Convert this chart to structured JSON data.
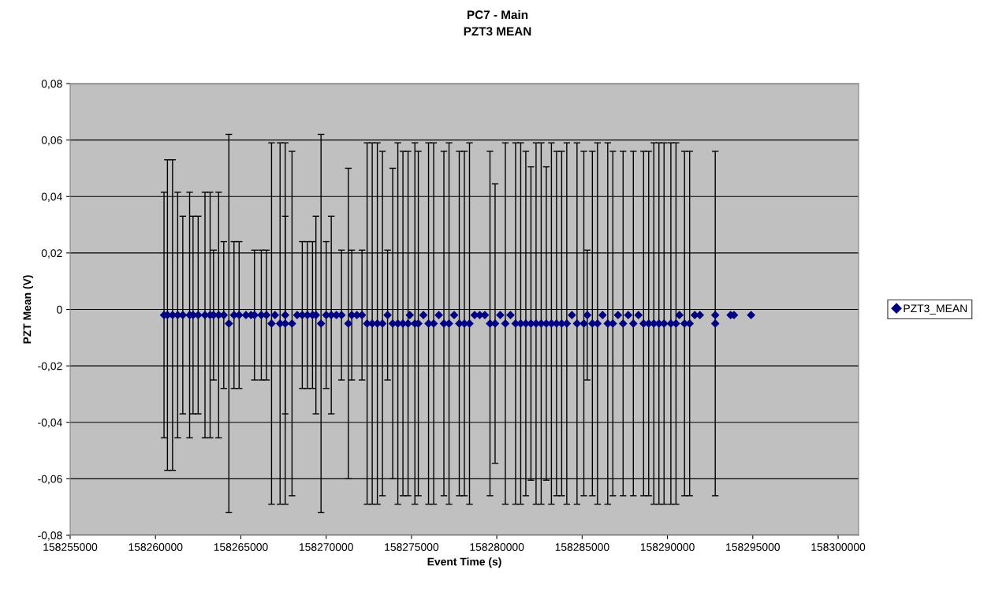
{
  "chart_data": {
    "type": "scatter",
    "title": "PC7 - Main",
    "subtitle": "PZT3 MEAN",
    "xlabel": "Event Time (s)",
    "ylabel": "PZT Mean (V)",
    "xlim": [
      158255000,
      158301200
    ],
    "xticks": [
      158255000,
      158260000,
      158265000,
      158270000,
      158275000,
      158280000,
      158285000,
      158290000,
      158295000,
      158300000
    ],
    "ylim": [
      -0.08,
      0.08
    ],
    "yticks": [
      {
        "value": -0.08,
        "label": "-0,08"
      },
      {
        "value": -0.06,
        "label": "-0,06"
      },
      {
        "value": -0.04,
        "label": "-0,04"
      },
      {
        "value": -0.02,
        "label": "-0,02"
      },
      {
        "value": 0,
        "label": "0"
      },
      {
        "value": 0.02,
        "label": "0,02"
      },
      {
        "value": 0.04,
        "label": "0,04"
      },
      {
        "value": 0.06,
        "label": "0,06"
      },
      {
        "value": 0.08,
        "label": "0,08"
      }
    ],
    "grid": "y",
    "legend": "right",
    "marker": "diamond",
    "series": [
      {
        "name": "PZT3_MEAN",
        "color": "#000080",
        "x": [
          158260500,
          158260700,
          158261000,
          158261300,
          158261600,
          158262000,
          158262200,
          158262500,
          158262900,
          158263200,
          158263400,
          158263700,
          158264000,
          158264300,
          158264600,
          158264900,
          158265300,
          158265600,
          158265800,
          158266200,
          158266500,
          158266800,
          158267000,
          158267300,
          158267600,
          158267600,
          158268000,
          158268300,
          158268600,
          158268900,
          158269200,
          158269400,
          158269700,
          158270000,
          158270300,
          158270600,
          158270900,
          158271300,
          158271500,
          158271800,
          158272100,
          158272400,
          158272700,
          158273000,
          158273300,
          158273600,
          158273900,
          158274200,
          158274500,
          158274800,
          158274900,
          158275200,
          158275400,
          158275700,
          158276000,
          158276300,
          158276600,
          158276900,
          158277200,
          158277500,
          158277800,
          158278100,
          158278400,
          158278700,
          158279000,
          158279300,
          158279600,
          158279900,
          158280200,
          158280500,
          158280800,
          158281100,
          158281400,
          158281700,
          158282000,
          158282300,
          158282600,
          158282900,
          158283200,
          158283500,
          158283800,
          158284100,
          158284400,
          158284700,
          158285100,
          158285300,
          158285600,
          158285900,
          158286200,
          158286500,
          158286800,
          158287100,
          158287400,
          158287700,
          158288000,
          158288300,
          158288600,
          158288900,
          158289200,
          158289500,
          158289800,
          158290200,
          158290500,
          158290700,
          158291000,
          158291300,
          158291600,
          158291900,
          158292800,
          158292800,
          158293700,
          158293900,
          158294900
        ],
        "values": [
          -0.002,
          -0.002,
          -0.002,
          -0.002,
          -0.002,
          -0.002,
          -0.002,
          -0.002,
          -0.002,
          -0.002,
          -0.002,
          -0.002,
          -0.002,
          -0.005,
          -0.002,
          -0.002,
          -0.002,
          -0.002,
          -0.002,
          -0.002,
          -0.002,
          -0.005,
          -0.002,
          -0.005,
          -0.002,
          -0.005,
          -0.005,
          -0.002,
          -0.002,
          -0.002,
          -0.002,
          -0.002,
          -0.005,
          -0.002,
          -0.002,
          -0.002,
          -0.002,
          -0.005,
          -0.002,
          -0.002,
          -0.002,
          -0.005,
          -0.005,
          -0.005,
          -0.005,
          -0.002,
          -0.005,
          -0.005,
          -0.005,
          -0.005,
          -0.002,
          -0.005,
          -0.005,
          -0.002,
          -0.005,
          -0.005,
          -0.002,
          -0.005,
          -0.005,
          -0.002,
          -0.005,
          -0.005,
          -0.005,
          -0.002,
          -0.002,
          -0.002,
          -0.005,
          -0.005,
          -0.002,
          -0.005,
          -0.002,
          -0.005,
          -0.005,
          -0.005,
          -0.005,
          -0.005,
          -0.005,
          -0.005,
          -0.005,
          -0.005,
          -0.005,
          -0.005,
          -0.002,
          -0.005,
          -0.005,
          -0.002,
          -0.005,
          -0.005,
          -0.002,
          -0.005,
          -0.005,
          -0.002,
          -0.005,
          -0.002,
          -0.005,
          -0.002,
          -0.005,
          -0.005,
          -0.005,
          -0.005,
          -0.005,
          -0.005,
          -0.005,
          -0.002,
          -0.005,
          -0.005,
          -0.002,
          -0.002,
          -0.002,
          -0.005,
          -0.002,
          -0.002,
          -0.002
        ],
        "errors": [
          0.0435,
          0.055,
          0.055,
          0.0435,
          0.035,
          0.0435,
          0.035,
          0.035,
          0.0435,
          0.0435,
          0.023,
          0.0435,
          0.026,
          0.067,
          0.026,
          0.026,
          null,
          null,
          0.023,
          0.023,
          0.023,
          0.064,
          null,
          0.064,
          0.035,
          0.064,
          0.061,
          null,
          0.026,
          0.026,
          0.026,
          0.035,
          0.067,
          0.026,
          0.035,
          null,
          0.023,
          0.055,
          0.023,
          null,
          0.023,
          0.064,
          0.064,
          0.064,
          0.061,
          0.023,
          0.055,
          0.064,
          0.061,
          0.061,
          null,
          0.064,
          0.061,
          null,
          0.064,
          0.064,
          null,
          0.061,
          0.064,
          null,
          0.061,
          0.061,
          0.064,
          null,
          null,
          null,
          0.061,
          0.0495,
          null,
          0.064,
          null,
          0.064,
          0.064,
          0.061,
          0.0555,
          0.064,
          0.064,
          0.0555,
          0.064,
          0.061,
          0.061,
          0.064,
          null,
          0.064,
          0.061,
          0.023,
          0.061,
          0.064,
          null,
          0.064,
          0.061,
          null,
          0.061,
          null,
          0.061,
          null,
          0.061,
          0.061,
          0.064,
          0.064,
          0.064,
          0.064,
          0.064,
          null,
          0.061,
          0.061,
          null,
          null,
          null,
          0.061,
          null,
          null,
          null
        ]
      }
    ]
  }
}
